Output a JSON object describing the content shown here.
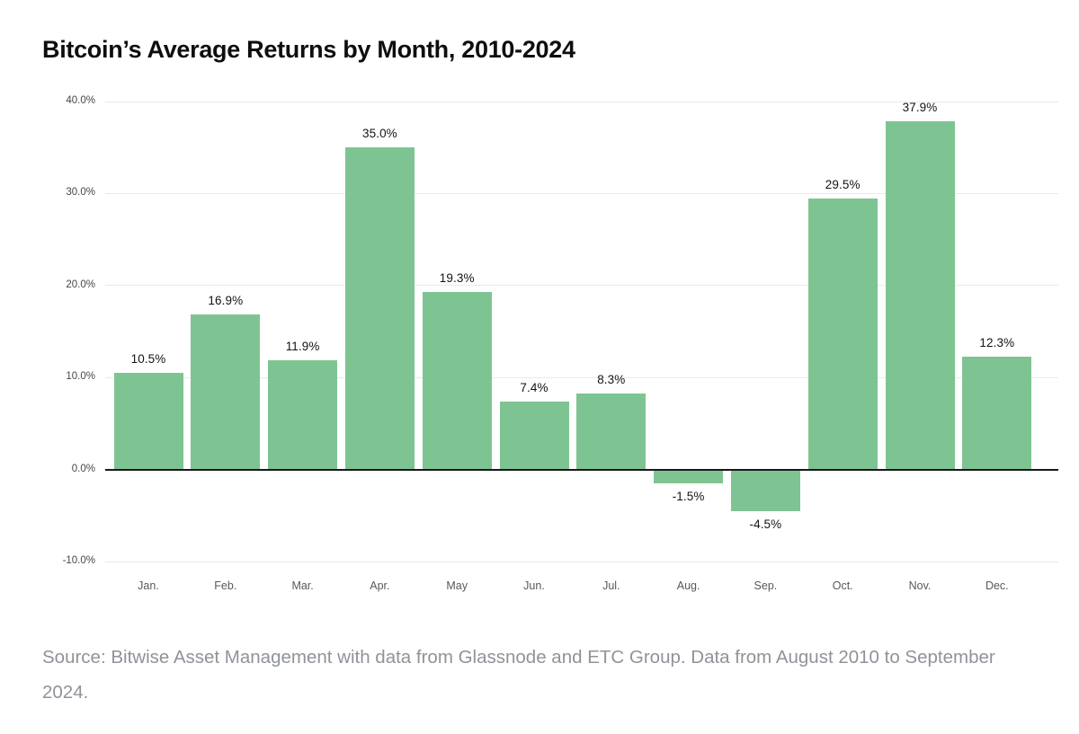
{
  "title": "Bitcoin’s Average Returns by Month, 2010-2024",
  "source": {
    "line1": "Source: Bitwise Asset Management with data from Glassnode and ETC Group. Data from August 2010 to September",
    "line2": "2024."
  },
  "chart_data": {
    "type": "bar",
    "title": "Bitcoin’s Average Returns by Month, 2010-2024",
    "categories": [
      "Jan.",
      "Feb.",
      "Mar.",
      "Apr.",
      "May",
      "Jun.",
      "Jul.",
      "Aug.",
      "Sep.",
      "Oct.",
      "Nov.",
      "Dec."
    ],
    "values": [
      10.5,
      16.9,
      11.9,
      35.0,
      19.3,
      7.4,
      8.3,
      -1.5,
      -4.5,
      29.5,
      37.9,
      12.3
    ],
    "value_labels": [
      "10.5%",
      "16.9%",
      "11.9%",
      "35.0%",
      "19.3%",
      "7.4%",
      "8.3%",
      "-1.5%",
      "-4.5%",
      "29.5%",
      "37.9%",
      "12.3%"
    ],
    "xlabel": "",
    "ylabel": "",
    "ylim": [
      -10,
      40
    ],
    "yticks": [
      40,
      30,
      20,
      10,
      0,
      -10
    ],
    "ytick_labels": [
      "40.0%",
      "30.0%",
      "20.0%",
      "10.0%",
      "0.0%",
      "-10.0%"
    ],
    "grid": true,
    "legend": false,
    "bar_color": "#7ec493",
    "zero_line_color": "#17181a",
    "grid_color": "#e9e9e9",
    "value_label_color": "#121315",
    "axis_text_color": "#43474c"
  }
}
